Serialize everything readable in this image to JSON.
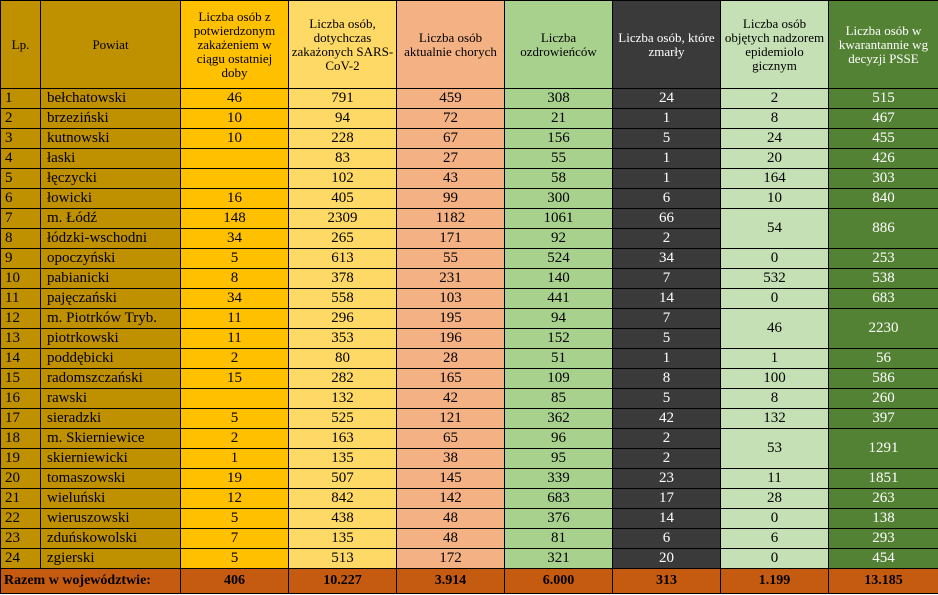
{
  "headers": {
    "lp": "Lp.",
    "powiat": "Powiat",
    "new_cases": "Liczba osób z potwierdzonym zakażeniem w ciągu ostatniej doby",
    "total_infected": "Liczba osób, dotychczas zakażonych SARS-CoV-2",
    "currently_sick": "Liczba osób aktualnie chorych",
    "recovered": "Liczba ozdrowieńców",
    "deaths": "Liczba osób, które zmarły",
    "supervision": "Liczba osób objętych nadzorem epidemiolo gicznym",
    "quarantine": "Liczba osób w kwarantannie wg decyzji PSSE"
  },
  "rows": [
    {
      "lp": "1",
      "powiat": "bełchatowski",
      "new": "46",
      "total": "791",
      "sick": "459",
      "rec": "308",
      "dead": "24",
      "sup": "2",
      "quar": "515"
    },
    {
      "lp": "2",
      "powiat": "brzeziński",
      "new": "10",
      "total": "94",
      "sick": "72",
      "rec": "21",
      "dead": "1",
      "sup": "8",
      "quar": "467"
    },
    {
      "lp": "3",
      "powiat": "kutnowski",
      "new": "10",
      "total": "228",
      "sick": "67",
      "rec": "156",
      "dead": "5",
      "sup": "24",
      "quar": "455"
    },
    {
      "lp": "4",
      "powiat": "łaski",
      "new": "",
      "total": "83",
      "sick": "27",
      "rec": "55",
      "dead": "1",
      "sup": "20",
      "quar": "426"
    },
    {
      "lp": "5",
      "powiat": "łęczycki",
      "new": "",
      "total": "102",
      "sick": "43",
      "rec": "58",
      "dead": "1",
      "sup": "164",
      "quar": "303"
    },
    {
      "lp": "6",
      "powiat": "łowicki",
      "new": "16",
      "total": "405",
      "sick": "99",
      "rec": "300",
      "dead": "6",
      "sup": "10",
      "quar": "840"
    },
    {
      "lp": "7",
      "powiat": "m. Łódź",
      "new": "148",
      "total": "2309",
      "sick": "1182",
      "rec": "1061",
      "dead": "66",
      "sup": "54",
      "quar": "886"
    },
    {
      "lp": "8",
      "powiat": "łódzki-wschodni",
      "new": "34",
      "total": "265",
      "sick": "171",
      "rec": "92",
      "dead": "2"
    },
    {
      "lp": "9",
      "powiat": "opoczyński",
      "new": "5",
      "total": "613",
      "sick": "55",
      "rec": "524",
      "dead": "34",
      "sup": "0",
      "quar": "253"
    },
    {
      "lp": "10",
      "powiat": "pabianicki",
      "new": "8",
      "total": "378",
      "sick": "231",
      "rec": "140",
      "dead": "7",
      "sup": "532",
      "quar": "538"
    },
    {
      "lp": "11",
      "powiat": "pajęczański",
      "new": "34",
      "total": "558",
      "sick": "103",
      "rec": "441",
      "dead": "14",
      "sup": "0",
      "quar": "683"
    },
    {
      "lp": "12",
      "powiat": "m. Piotrków Tryb.",
      "new": "11",
      "total": "296",
      "sick": "195",
      "rec": "94",
      "dead": "7",
      "sup": "46",
      "quar": "2230"
    },
    {
      "lp": "13",
      "powiat": "piotrkowski",
      "new": "11",
      "total": "353",
      "sick": "196",
      "rec": "152",
      "dead": "5"
    },
    {
      "lp": "14",
      "powiat": "poddębicki",
      "new": "2",
      "total": "80",
      "sick": "28",
      "rec": "51",
      "dead": "1",
      "sup": "1",
      "quar": "56"
    },
    {
      "lp": "15",
      "powiat": "radomszczański",
      "new": "15",
      "total": "282",
      "sick": "165",
      "rec": "109",
      "dead": "8",
      "sup": "100",
      "quar": "586"
    },
    {
      "lp": "16",
      "powiat": "rawski",
      "new": "",
      "total": "132",
      "sick": "42",
      "rec": "85",
      "dead": "5",
      "sup": "8",
      "quar": "260"
    },
    {
      "lp": "17",
      "powiat": "sieradzki",
      "new": "5",
      "total": "525",
      "sick": "121",
      "rec": "362",
      "dead": "42",
      "sup": "132",
      "quar": "397"
    },
    {
      "lp": "18",
      "powiat": "m. Skierniewice",
      "new": "2",
      "total": "163",
      "sick": "65",
      "rec": "96",
      "dead": "2",
      "sup": "53",
      "quar": "1291"
    },
    {
      "lp": "19",
      "powiat": "skierniewicki",
      "new": "1",
      "total": "135",
      "sick": "38",
      "rec": "95",
      "dead": "2"
    },
    {
      "lp": "20",
      "powiat": "tomaszowski",
      "new": "19",
      "total": "507",
      "sick": "145",
      "rec": "339",
      "dead": "23",
      "sup": "11",
      "quar": "1851"
    },
    {
      "lp": "21",
      "powiat": "wieluński",
      "new": "12",
      "total": "842",
      "sick": "142",
      "rec": "683",
      "dead": "17",
      "sup": "28",
      "quar": "263"
    },
    {
      "lp": "22",
      "powiat": "wieruszowski",
      "new": "5",
      "total": "438",
      "sick": "48",
      "rec": "376",
      "dead": "14",
      "sup": "0",
      "quar": "138"
    },
    {
      "lp": "23",
      "powiat": "zduńskowolski",
      "new": "7",
      "total": "135",
      "sick": "48",
      "rec": "81",
      "dead": "6",
      "sup": "6",
      "quar": "293"
    },
    {
      "lp": "24",
      "powiat": "zgierski",
      "new": "5",
      "total": "513",
      "sick": "172",
      "rec": "321",
      "dead": "20",
      "sup": "0",
      "quar": "454"
    }
  ],
  "totals": {
    "label": "Razem w województwie:",
    "new": "406",
    "total": "10.227",
    "sick": "3.914",
    "rec": "6.000",
    "dead": "313",
    "sup": "1.199",
    "quar": "13.185"
  },
  "colors": {
    "lp_powiat": "#bf9000",
    "new_cases": "#ffc000",
    "total_infected": "#ffd966",
    "currently_sick": "#f4b183",
    "recovered": "#a9d18e",
    "deaths": "#3a3a3a",
    "supervision": "#c5e0b4",
    "quarantine": "#548235",
    "totals_row": "#c55a11"
  }
}
